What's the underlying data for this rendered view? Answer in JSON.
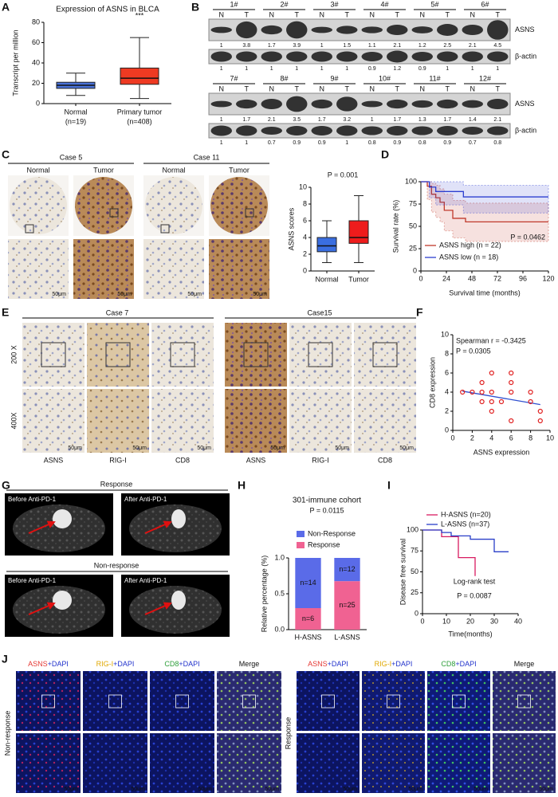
{
  "panels": [
    "A",
    "B",
    "C",
    "D",
    "E",
    "F",
    "G",
    "H",
    "I",
    "J"
  ],
  "chart_data": [
    {
      "type": "box",
      "title": "Expression of ASNS in BLCA",
      "ylabel": "Transcript per million",
      "annotations": [
        "***"
      ],
      "categories": [
        "Normal",
        "Primary tumor"
      ],
      "n_labels": [
        "(n=19)",
        "(n=408)"
      ],
      "min": [
        8,
        5
      ],
      "q1": [
        15,
        19
      ],
      "median": [
        18,
        25
      ],
      "q3": [
        21,
        35
      ],
      "max": [
        30,
        65
      ],
      "colors": [
        "#4a72d8",
        "#ee3a22"
      ],
      "ylim": [
        0,
        80
      ],
      "yticks": [
        0,
        20,
        40,
        60,
        80
      ]
    },
    {
      "type": "box",
      "ylabel": "ASNS scores",
      "annotations": [
        "P = 0.001"
      ],
      "categories": [
        "Normal",
        "Tumor"
      ],
      "min": [
        1,
        1
      ],
      "q1": [
        2.3,
        3.3
      ],
      "median": [
        3,
        4
      ],
      "q3": [
        4,
        6
      ],
      "max": [
        6,
        9
      ],
      "colors": [
        "#3a6ee0",
        "#ee1c1c"
      ],
      "ylim": [
        0,
        10
      ],
      "yticks": [
        0,
        2,
        4,
        6,
        8,
        10
      ]
    },
    {
      "type": "km",
      "ylabel": "Survival rate (%)",
      "xlabel": "Survival time (months)",
      "annotations": [
        "P = 0.0462"
      ],
      "xlim": [
        0,
        120
      ],
      "xticks": [
        0,
        24,
        48,
        72,
        96,
        120
      ],
      "ylim": [
        0,
        100
      ],
      "yticks": [
        0,
        25,
        50,
        75,
        100
      ],
      "legend": "bottom-left",
      "series": [
        {
          "name": "ASNS high (n = 22)",
          "color": "#c0392b",
          "x": [
            0,
            6,
            10,
            14,
            18,
            22,
            30,
            42,
            120
          ],
          "values": [
            100,
            95,
            86,
            82,
            77,
            68,
            59,
            55,
            55
          ],
          "ci_lower": [
            100,
            80,
            66,
            60,
            55,
            45,
            37,
            33,
            33
          ],
          "ci_upper": [
            100,
            100,
            98,
            96,
            92,
            86,
            79,
            76,
            76
          ]
        },
        {
          "name": "ASNS low (n = 18)",
          "color": "#2c3fd0",
          "x": [
            0,
            8,
            14,
            40,
            120
          ],
          "values": [
            100,
            94,
            89,
            83,
            83
          ],
          "ci_lower": [
            100,
            82,
            74,
            65,
            65
          ],
          "ci_upper": [
            100,
            100,
            100,
            96,
            96
          ]
        }
      ]
    },
    {
      "type": "scatter",
      "xlabel": "ASNS expression",
      "ylabel": "CD8 expression",
      "annotations": [
        "Spearman r = -0.3425",
        "P = 0.0305"
      ],
      "xlim": [
        0,
        10
      ],
      "xticks": [
        0,
        2,
        4,
        6,
        8,
        10
      ],
      "ylim": [
        0,
        10
      ],
      "yticks": [
        0,
        2,
        4,
        6,
        8,
        10
      ],
      "color": "#e02020",
      "x": [
        1,
        2,
        3,
        3,
        3,
        4,
        4,
        4,
        4,
        5,
        6,
        6,
        6,
        6,
        8,
        8,
        9,
        9
      ],
      "values": [
        4,
        4,
        5,
        4,
        3,
        6,
        4,
        3,
        2,
        3,
        6,
        5,
        4,
        1,
        4,
        3,
        2,
        1
      ],
      "fit": {
        "x": [
          1,
          9
        ],
        "y": [
          4.1,
          2.7
        ]
      },
      "fit_color": "#3050d0"
    },
    {
      "type": "stacked_bar",
      "title": "301-immune cohort",
      "ylabel": "Relative percentage (%)",
      "annotations": [
        "P = 0.0115"
      ],
      "categories": [
        "H-ASNS",
        "L-ASNS"
      ],
      "ylim": [
        0,
        1
      ],
      "yticks": [
        {
          "value": 0,
          "label": "0.0"
        },
        0.5,
        {
          "value": 1,
          "label": "1.0"
        }
      ],
      "series": [
        {
          "name": "Response",
          "color": "#f06292",
          "values": [
            0.3,
            0.676
          ],
          "count_labels": [
            "n=6",
            "n=25"
          ]
        },
        {
          "name": "Non-Response",
          "color": "#5a6be8",
          "values": [
            0.7,
            0.324
          ],
          "count_labels": [
            "n=14",
            "n=12"
          ]
        }
      ]
    },
    {
      "type": "km",
      "ylabel": "Disease free survival",
      "xlabel": "Time(months)",
      "annotations": [
        "Log-rank test",
        "P = 0.0087"
      ],
      "xlim": [
        0,
        40
      ],
      "xticks": [
        0,
        10,
        20,
        30,
        40
      ],
      "ylim": [
        0,
        100
      ],
      "yticks": [
        0,
        25,
        50,
        75,
        100
      ],
      "legend": "top-left",
      "series": [
        {
          "name": "H-ASNS (n=20)",
          "color": "#d81b60",
          "x": [
            0,
            8,
            15,
            22
          ],
          "values": [
            100,
            92,
            67,
            45
          ]
        },
        {
          "name": "L-ASNS (n=37)",
          "color": "#2a3fc8",
          "x": [
            0,
            8,
            12,
            20,
            30,
            36
          ],
          "values": [
            100,
            97,
            93,
            89,
            74,
            74
          ]
        }
      ]
    }
  ],
  "blot": {
    "bands": [
      "ASNS",
      "β-actin"
    ],
    "conditions": [
      "N",
      "T"
    ],
    "blocks": [
      {
        "lanes": [
          "1#",
          "2#",
          "3#",
          "4#",
          "5#",
          "6#"
        ],
        "values": [
          [
            1.0,
            3.8,
            1.7,
            3.9,
            1.0,
            1.5,
            1.1,
            2.1,
            1.2,
            2.5,
            2.1,
            4.5
          ],
          [
            1.0,
            1.0,
            1.0,
            1.0,
            1.0,
            1.0,
            0.9,
            1.2,
            0.9,
            1.0,
            1.0,
            1.0
          ]
        ]
      },
      {
        "lanes": [
          "7#",
          "8#",
          "9#",
          "10#",
          "11#",
          "12#"
        ],
        "values": [
          [
            1.0,
            1.7,
            2.1,
            3.5,
            1.7,
            3.2,
            1.0,
            1.7,
            1.3,
            1.7,
            1.4,
            2.1
          ],
          [
            1.0,
            1.0,
            0.7,
            0.9,
            0.9,
            1.0,
            0.8,
            0.9,
            0.8,
            0.9,
            0.7,
            0.8
          ]
        ]
      }
    ]
  },
  "ihc_c": {
    "cases": [
      {
        "title": "Case 5",
        "columns": [
          "Normal",
          "Tumor"
        ]
      },
      {
        "title": "Case 11",
        "columns": [
          "Normal",
          "Tumor"
        ]
      }
    ],
    "scale_bar": "50μm"
  },
  "ihc_e": {
    "cases": [
      "Case 7",
      "Case15"
    ],
    "magnifications": [
      "200 X",
      "400X"
    ],
    "stains": [
      "ASNS",
      "RIG-I",
      "CD8"
    ],
    "scale_bar": "50μm"
  },
  "mri_g": {
    "groups": [
      {
        "title": "Response",
        "images": [
          "Before Anti-PD-1",
          "After Anti-PD-1"
        ]
      },
      {
        "title": "Non-response",
        "images": [
          "Before Anti-PD-1",
          "After Anti-PD-1"
        ]
      }
    ]
  },
  "if_j": {
    "groups": [
      "Non-response",
      "Response"
    ],
    "channels": [
      {
        "marker": "ASNS",
        "stain": "+DAPI",
        "color": "#e53935"
      },
      {
        "marker": "RIG-I",
        "stain": "+DAPI",
        "color": "#e0a800"
      },
      {
        "marker": "CD8",
        "stain": "+DAPI",
        "color": "#2e9e3a"
      },
      {
        "marker": "Merge"
      }
    ],
    "stain_color": "#2233cc",
    "scale_bar": "50μm"
  }
}
